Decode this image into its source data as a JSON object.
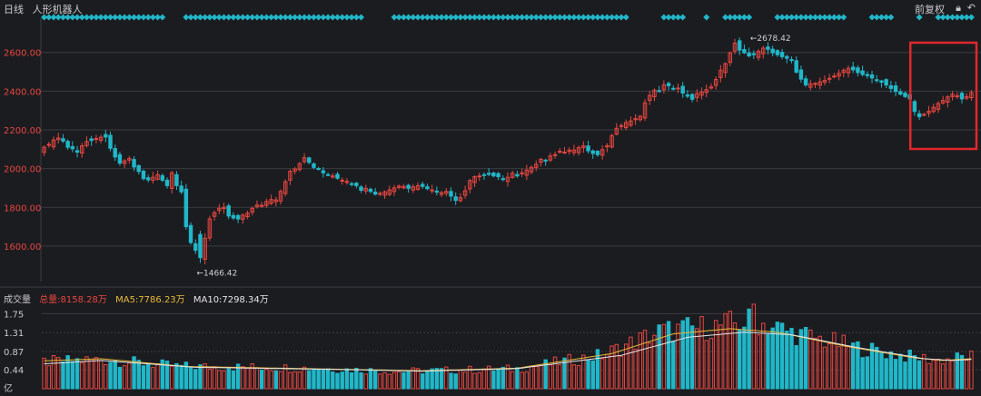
{
  "header": {
    "period": "日线",
    "name": "人形机器人",
    "adjust": "前复权",
    "lock_icon": "lock-icon",
    "undo_icon": "undo-icon"
  },
  "volume_header": {
    "label": "成交量",
    "total": "总量:8158.28万",
    "ma5": "MA5:7786.23万",
    "ma10": "MA10:7298.34万"
  },
  "colors": {
    "up": "#e8463f",
    "down": "#21b7c9",
    "ma5": "#e8b93a",
    "ma10": "#e6e6e6",
    "grid": "#3a3b40",
    "highlight": "#e0282c",
    "price_label": "#e8463f"
  },
  "chart_data": [
    {
      "type": "candlestick",
      "y_ticks": [
        "2600.00",
        "2400.00",
        "2200.00",
        "2000.00",
        "1800.00",
        "1600.00"
      ],
      "y_tick_values": [
        2600,
        2400,
        2200,
        2000,
        1800,
        1600
      ],
      "ylim": [
        1440,
        2730
      ],
      "max_annotation": "2678.42",
      "min_annotation": "1466.42",
      "highlight_box": "last 13 sessions",
      "closes": [
        2110,
        2125,
        2148,
        2158,
        2142,
        2110,
        2102,
        2085,
        2118,
        2140,
        2145,
        2155,
        2162,
        2163,
        2105,
        2060,
        2028,
        2040,
        2052,
        2008,
        1985,
        1948,
        1942,
        1955,
        1968,
        1940,
        1912,
        1978,
        1912,
        1880,
        1700,
        1618,
        1578,
        1540,
        1640,
        1740,
        1772,
        1795,
        1800,
        1755,
        1745,
        1740,
        1760,
        1770,
        1795,
        1812,
        1810,
        1830,
        1840,
        1838,
        1882,
        1932,
        1986,
        1998,
        2026,
        2056,
        2032,
        2006,
        1998,
        1978,
        1968,
        1962,
        1950,
        1940,
        1934,
        1922,
        1912,
        1888,
        1898,
        1882,
        1868,
        1872,
        1880,
        1890,
        1900,
        1910,
        1908,
        1898,
        1906,
        1912,
        1908,
        1896,
        1890,
        1878,
        1876,
        1882,
        1858,
        1836,
        1850,
        1886,
        1938,
        1958,
        1962,
        1968,
        1970,
        1962,
        1958,
        1946,
        1955,
        1976,
        1962,
        1978,
        1992,
        2006,
        2022,
        2048,
        2042,
        2065,
        2072,
        2090,
        2085,
        2095,
        2096,
        2108,
        2118,
        2092,
        2078,
        2072,
        2098,
        2118,
        2170,
        2208,
        2222,
        2238,
        2246,
        2258,
        2270,
        2340,
        2378,
        2405,
        2398,
        2432,
        2428,
        2412,
        2416,
        2390,
        2374,
        2358,
        2388,
        2395,
        2408,
        2422,
        2460,
        2508,
        2542,
        2598,
        2648,
        2612,
        2598,
        2582,
        2588,
        2605,
        2622,
        2616,
        2598,
        2588,
        2578,
        2570,
        2562,
        2498,
        2462,
        2432,
        2438,
        2440,
        2448,
        2456,
        2466,
        2478,
        2492,
        2508,
        2518,
        2510,
        2496,
        2486,
        2480,
        2468,
        2456,
        2446,
        2432,
        2414,
        2398,
        2384,
        2372,
        2360,
        2295,
        2268,
        2280,
        2296,
        2316,
        2336,
        2352,
        2370,
        2384,
        2376,
        2360,
        2372,
        2392
      ],
      "volume_y_ticks": [
        "1.75",
        "1.31",
        "0.87",
        "0.44"
      ],
      "volume_y_tick_values": [
        1.75,
        1.31,
        0.87,
        0.44
      ],
      "volume_unit": "亿",
      "volume_ylim": [
        0,
        1.95
      ],
      "volume_profile": [
        [
          0,
          0.62
        ],
        [
          12,
          0.68
        ],
        [
          28,
          0.52
        ],
        [
          55,
          0.48
        ],
        [
          75,
          0.4
        ],
        [
          100,
          0.46
        ],
        [
          118,
          0.78
        ],
        [
          130,
          1.32
        ],
        [
          142,
          1.45
        ],
        [
          150,
          1.58
        ],
        [
          158,
          1.3
        ],
        [
          172,
          0.95
        ],
        [
          183,
          0.74
        ],
        [
          189,
          0.66
        ],
        [
          195,
          0.74
        ],
        [
          202,
          0.76
        ]
      ],
      "ma5_profile": [
        [
          0,
          0.65
        ],
        [
          12,
          0.7
        ],
        [
          30,
          0.52
        ],
        [
          60,
          0.46
        ],
        [
          80,
          0.42
        ],
        [
          100,
          0.48
        ],
        [
          120,
          0.82
        ],
        [
          133,
          1.28
        ],
        [
          145,
          1.4
        ],
        [
          155,
          1.32
        ],
        [
          170,
          0.98
        ],
        [
          184,
          0.72
        ],
        [
          190,
          0.66
        ],
        [
          202,
          0.74
        ]
      ],
      "ma10_profile": [
        [
          0,
          0.58
        ],
        [
          12,
          0.66
        ],
        [
          32,
          0.5
        ],
        [
          62,
          0.45
        ],
        [
          80,
          0.41
        ],
        [
          100,
          0.47
        ],
        [
          122,
          0.78
        ],
        [
          136,
          1.2
        ],
        [
          148,
          1.32
        ],
        [
          158,
          1.26
        ],
        [
          172,
          0.96
        ],
        [
          186,
          0.7
        ],
        [
          192,
          0.66
        ],
        [
          202,
          0.72
        ]
      ]
    }
  ]
}
